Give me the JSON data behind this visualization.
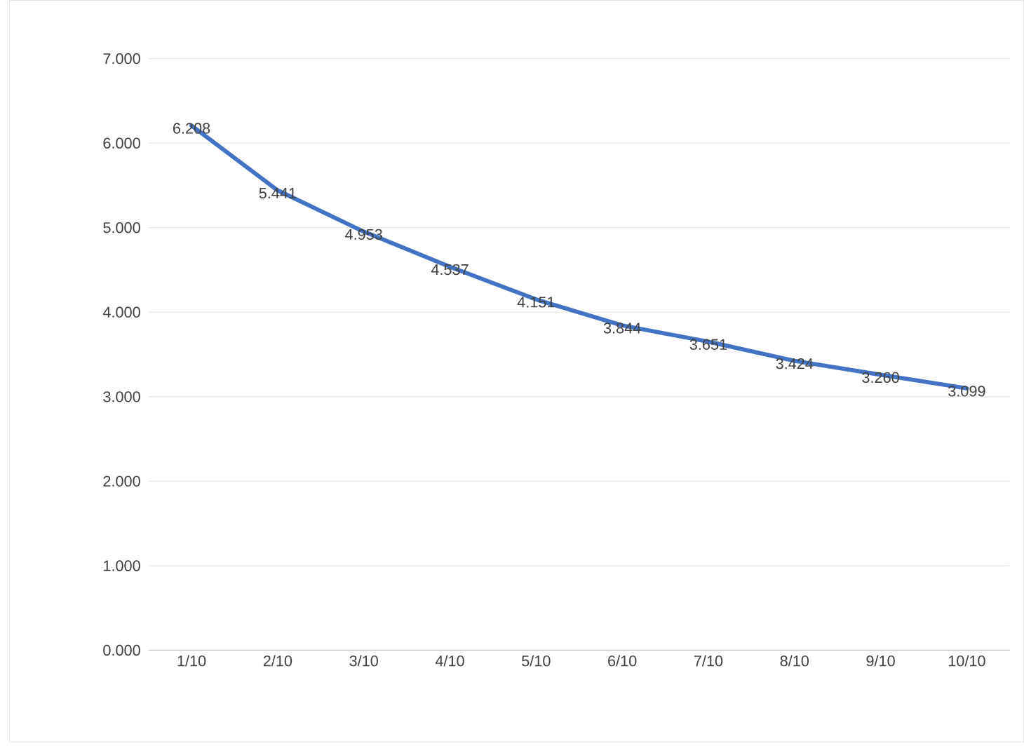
{
  "chart_data": {
    "type": "line",
    "categories": [
      "1/10",
      "2/10",
      "3/10",
      "4/10",
      "5/10",
      "6/10",
      "7/10",
      "8/10",
      "9/10",
      "10/10"
    ],
    "values": [
      6.208,
      5.441,
      4.953,
      4.537,
      4.151,
      3.844,
      3.651,
      3.424,
      3.26,
      3.099
    ],
    "color": "#4472c4",
    "ylim": [
      0,
      7
    ],
    "yticks": [
      {
        "value": 0,
        "label": "0.000"
      },
      {
        "value": 1,
        "label": "1.000"
      },
      {
        "value": 2,
        "label": "2.000"
      },
      {
        "value": 3,
        "label": "3.000"
      },
      {
        "value": 4,
        "label": "4.000"
      },
      {
        "value": 5,
        "label": "5.000"
      },
      {
        "value": 6,
        "label": "6.000"
      },
      {
        "value": 7,
        "label": "7.000"
      }
    ],
    "value_labels": [
      "6.208",
      "5.441",
      "4.953",
      "4.537",
      "4.151",
      "3.844",
      "3.651",
      "3.424",
      "3.260",
      "3.099"
    ],
    "grid": "y",
    "marker": "none",
    "line_style": "solid"
  }
}
